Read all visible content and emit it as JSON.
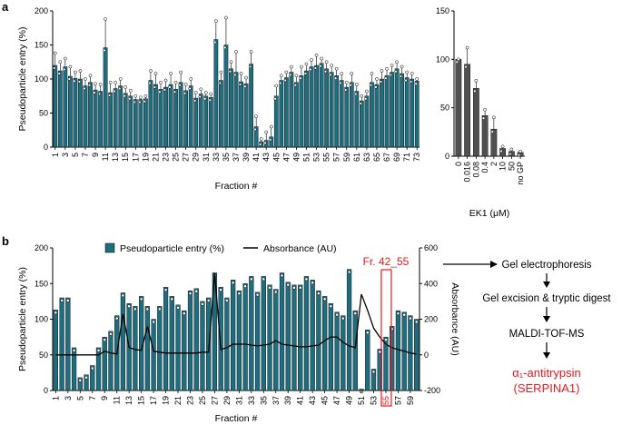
{
  "colors": {
    "teal": "#1f6e80",
    "grey": "#505050",
    "red": "#e8191c",
    "black": "#000000"
  },
  "chart_data": [
    {
      "id": "a-main",
      "panel": "a",
      "type": "bar",
      "xlabel": "Fraction #",
      "ylabel": "Pseudoparticle entry (%)",
      "ylim": [
        0,
        200
      ],
      "yticks": [
        "0",
        "50",
        "100",
        "150",
        "200"
      ],
      "xtick_labels": [
        "1",
        "3",
        "5",
        "7",
        "9",
        "11",
        "13",
        "15",
        "17",
        "19",
        "21",
        "23",
        "25",
        "27",
        "29",
        "31",
        "33",
        "35",
        "37",
        "39",
        "41",
        "43",
        "45",
        "47",
        "49",
        "51",
        "53",
        "55",
        "57",
        "59",
        "61",
        "63",
        "65",
        "67",
        "69",
        "71",
        "73"
      ],
      "categories": [
        1,
        2,
        3,
        4,
        5,
        6,
        7,
        8,
        9,
        10,
        11,
        12,
        13,
        14,
        15,
        16,
        17,
        18,
        19,
        20,
        21,
        22,
        23,
        24,
        25,
        26,
        27,
        28,
        29,
        30,
        31,
        32,
        33,
        34,
        35,
        36,
        37,
        38,
        39,
        40,
        41,
        42,
        43,
        44,
        45,
        46,
        47,
        48,
        49,
        50,
        51,
        52,
        53,
        54,
        55,
        56,
        57,
        58,
        59,
        60,
        61,
        62,
        63,
        64,
        65,
        66,
        67,
        68,
        69,
        70,
        71,
        72,
        73
      ],
      "values": [
        120,
        112,
        118,
        104,
        101,
        100,
        90,
        95,
        84,
        82,
        146,
        80,
        86,
        90,
        79,
        75,
        70,
        70,
        71,
        98,
        92,
        85,
        88,
        92,
        85,
        95,
        83,
        90,
        72,
        78,
        75,
        73,
        158,
        98,
        150,
        115,
        110,
        96,
        93,
        122,
        30,
        8,
        10,
        15,
        75,
        98,
        102,
        110,
        95,
        105,
        112,
        118,
        120,
        123,
        115,
        110,
        105,
        98,
        88,
        95,
        82,
        68,
        75,
        95,
        92,
        100,
        105,
        110,
        115,
        108,
        102,
        100,
        97
      ],
      "points_max": [
        138,
        125,
        130,
        118,
        110,
        112,
        100,
        105,
        93,
        92,
        188,
        95,
        95,
        100,
        88,
        83,
        75,
        73,
        75,
        112,
        108,
        95,
        98,
        108,
        95,
        110,
        92,
        100,
        80,
        85,
        80,
        78,
        185,
        110,
        190,
        125,
        140,
        108,
        102,
        140,
        45,
        12,
        22,
        30,
        90,
        105,
        110,
        118,
        105,
        118,
        122,
        128,
        135,
        130,
        125,
        120,
        115,
        108,
        95,
        108,
        92,
        75,
        82,
        108,
        100,
        112,
        115,
        120,
        125,
        118,
        110,
        108,
        100
      ]
    },
    {
      "id": "a-ek1",
      "panel": "a",
      "type": "bar",
      "xlabel": "EK1 (μM)",
      "ylim": [
        0,
        150
      ],
      "yticks": [
        "0",
        "50",
        "100",
        "150"
      ],
      "categories": [
        "0",
        "0.016",
        "0.08",
        "0.4",
        "2",
        "10",
        "50",
        "no GP"
      ],
      "values": [
        100,
        95,
        70,
        42,
        28,
        8,
        5,
        4
      ],
      "points_max": [
        100,
        112,
        78,
        48,
        40,
        10,
        7,
        5
      ]
    },
    {
      "id": "b-combined",
      "panel": "b",
      "type": "bar",
      "xlabel": "Fraction #",
      "ylabel": "Pseudoparticle entry (%)",
      "y2label": "Absorbance (AU)",
      "ylim": [
        0,
        200
      ],
      "y2lim": [
        -200,
        600
      ],
      "yticks": [
        "0",
        "50",
        "100",
        "150",
        "200"
      ],
      "y2ticks": [
        "-200",
        "0",
        "200",
        "400",
        "600"
      ],
      "legend": [
        "Pseudoparticle entry (%)",
        "Absorbance (AU)"
      ],
      "highlight_label": "Fr. 42_55",
      "highlight_fraction": 55,
      "xtick_labels": [
        "1",
        "3",
        "5",
        "7",
        "9",
        "11",
        "13",
        "15",
        "17",
        "19",
        "21",
        "23",
        "25",
        "27",
        "29",
        "31",
        "33",
        "35",
        "37",
        "39",
        "41",
        "43",
        "45",
        "47",
        "49",
        "51",
        "53",
        "55",
        "57",
        "59"
      ],
      "categories": [
        1,
        2,
        3,
        4,
        5,
        6,
        7,
        8,
        9,
        10,
        11,
        12,
        13,
        14,
        15,
        16,
        17,
        18,
        19,
        20,
        21,
        22,
        23,
        24,
        25,
        26,
        27,
        28,
        29,
        30,
        31,
        32,
        33,
        34,
        35,
        36,
        37,
        38,
        39,
        40,
        41,
        42,
        43,
        44,
        45,
        46,
        47,
        48,
        49,
        50,
        51,
        52,
        53,
        54,
        55,
        56,
        57,
        58,
        59,
        60
      ],
      "values": [
        113,
        130,
        130,
        60,
        18,
        22,
        35,
        60,
        75,
        83,
        105,
        137,
        122,
        118,
        132,
        118,
        100,
        118,
        145,
        132,
        120,
        112,
        140,
        143,
        125,
        130,
        165,
        145,
        130,
        155,
        140,
        150,
        160,
        138,
        160,
        148,
        142,
        165,
        152,
        148,
        148,
        160,
        155,
        140,
        132,
        122,
        110,
        105,
        170,
        112,
        2,
        85,
        30,
        58,
        75,
        90,
        112,
        110,
        105,
        100
      ],
      "absorbance": [
        0,
        0,
        0,
        0,
        0,
        0,
        0,
        0,
        20,
        10,
        5,
        230,
        40,
        30,
        25,
        160,
        20,
        15,
        10,
        10,
        10,
        10,
        10,
        10,
        15,
        15,
        460,
        30,
        40,
        60,
        60,
        60,
        55,
        50,
        55,
        60,
        80,
        60,
        55,
        50,
        45,
        45,
        50,
        55,
        80,
        100,
        100,
        70,
        50,
        40,
        340,
        250,
        150,
        100,
        60,
        40,
        30,
        20,
        10,
        5
      ]
    }
  ],
  "flow": {
    "steps": [
      "Gel electrophoresis",
      "Gel excision & tryptic digest",
      "MALDI-TOF-MS"
    ],
    "result_line1": "α₁-antitrypsin",
    "result_line2": "(SERPINA1)"
  },
  "panel_labels": {
    "a": "a",
    "b": "b"
  }
}
